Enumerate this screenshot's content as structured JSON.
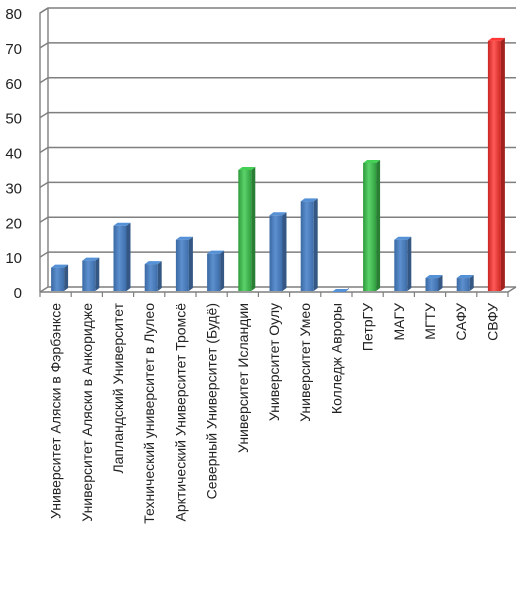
{
  "chart_data": {
    "type": "bar",
    "categories": [
      "Университет Аляски в Фэрбэнксе",
      "Университет Аляски в Анкоридже",
      "Лапландский Университет",
      "Технический университет в Лулео",
      "Арктический Университет Тромсё",
      "Северный Университет (Будё)",
      "Университет Исландии",
      "Университет Оулу",
      "Университет Умео",
      "Колледж Авроры",
      "ПетрГУ",
      "МАГУ",
      "МГТУ",
      "САФУ",
      "СВФУ"
    ],
    "values": [
      7,
      9,
      19,
      8,
      15,
      11,
      35,
      22,
      26,
      0,
      37,
      15,
      4,
      4,
      72
    ],
    "bar_colors": [
      "#4a7ebb",
      "#4a7ebb",
      "#4a7ebb",
      "#4a7ebb",
      "#4a7ebb",
      "#4a7ebb",
      "#3bb54a",
      "#4a7ebb",
      "#4a7ebb",
      "#4a7ebb",
      "#3bb54a",
      "#4a7ebb",
      "#4a7ebb",
      "#4a7ebb",
      "#e8302e"
    ],
    "yticks": [
      "0",
      "10",
      "20",
      "30",
      "40",
      "50",
      "60",
      "70",
      "80"
    ],
    "ylim": [
      0,
      80
    ],
    "grid": true,
    "legend": false,
    "style": "3d-columns",
    "title": "",
    "xlabel": "",
    "ylabel": ""
  }
}
